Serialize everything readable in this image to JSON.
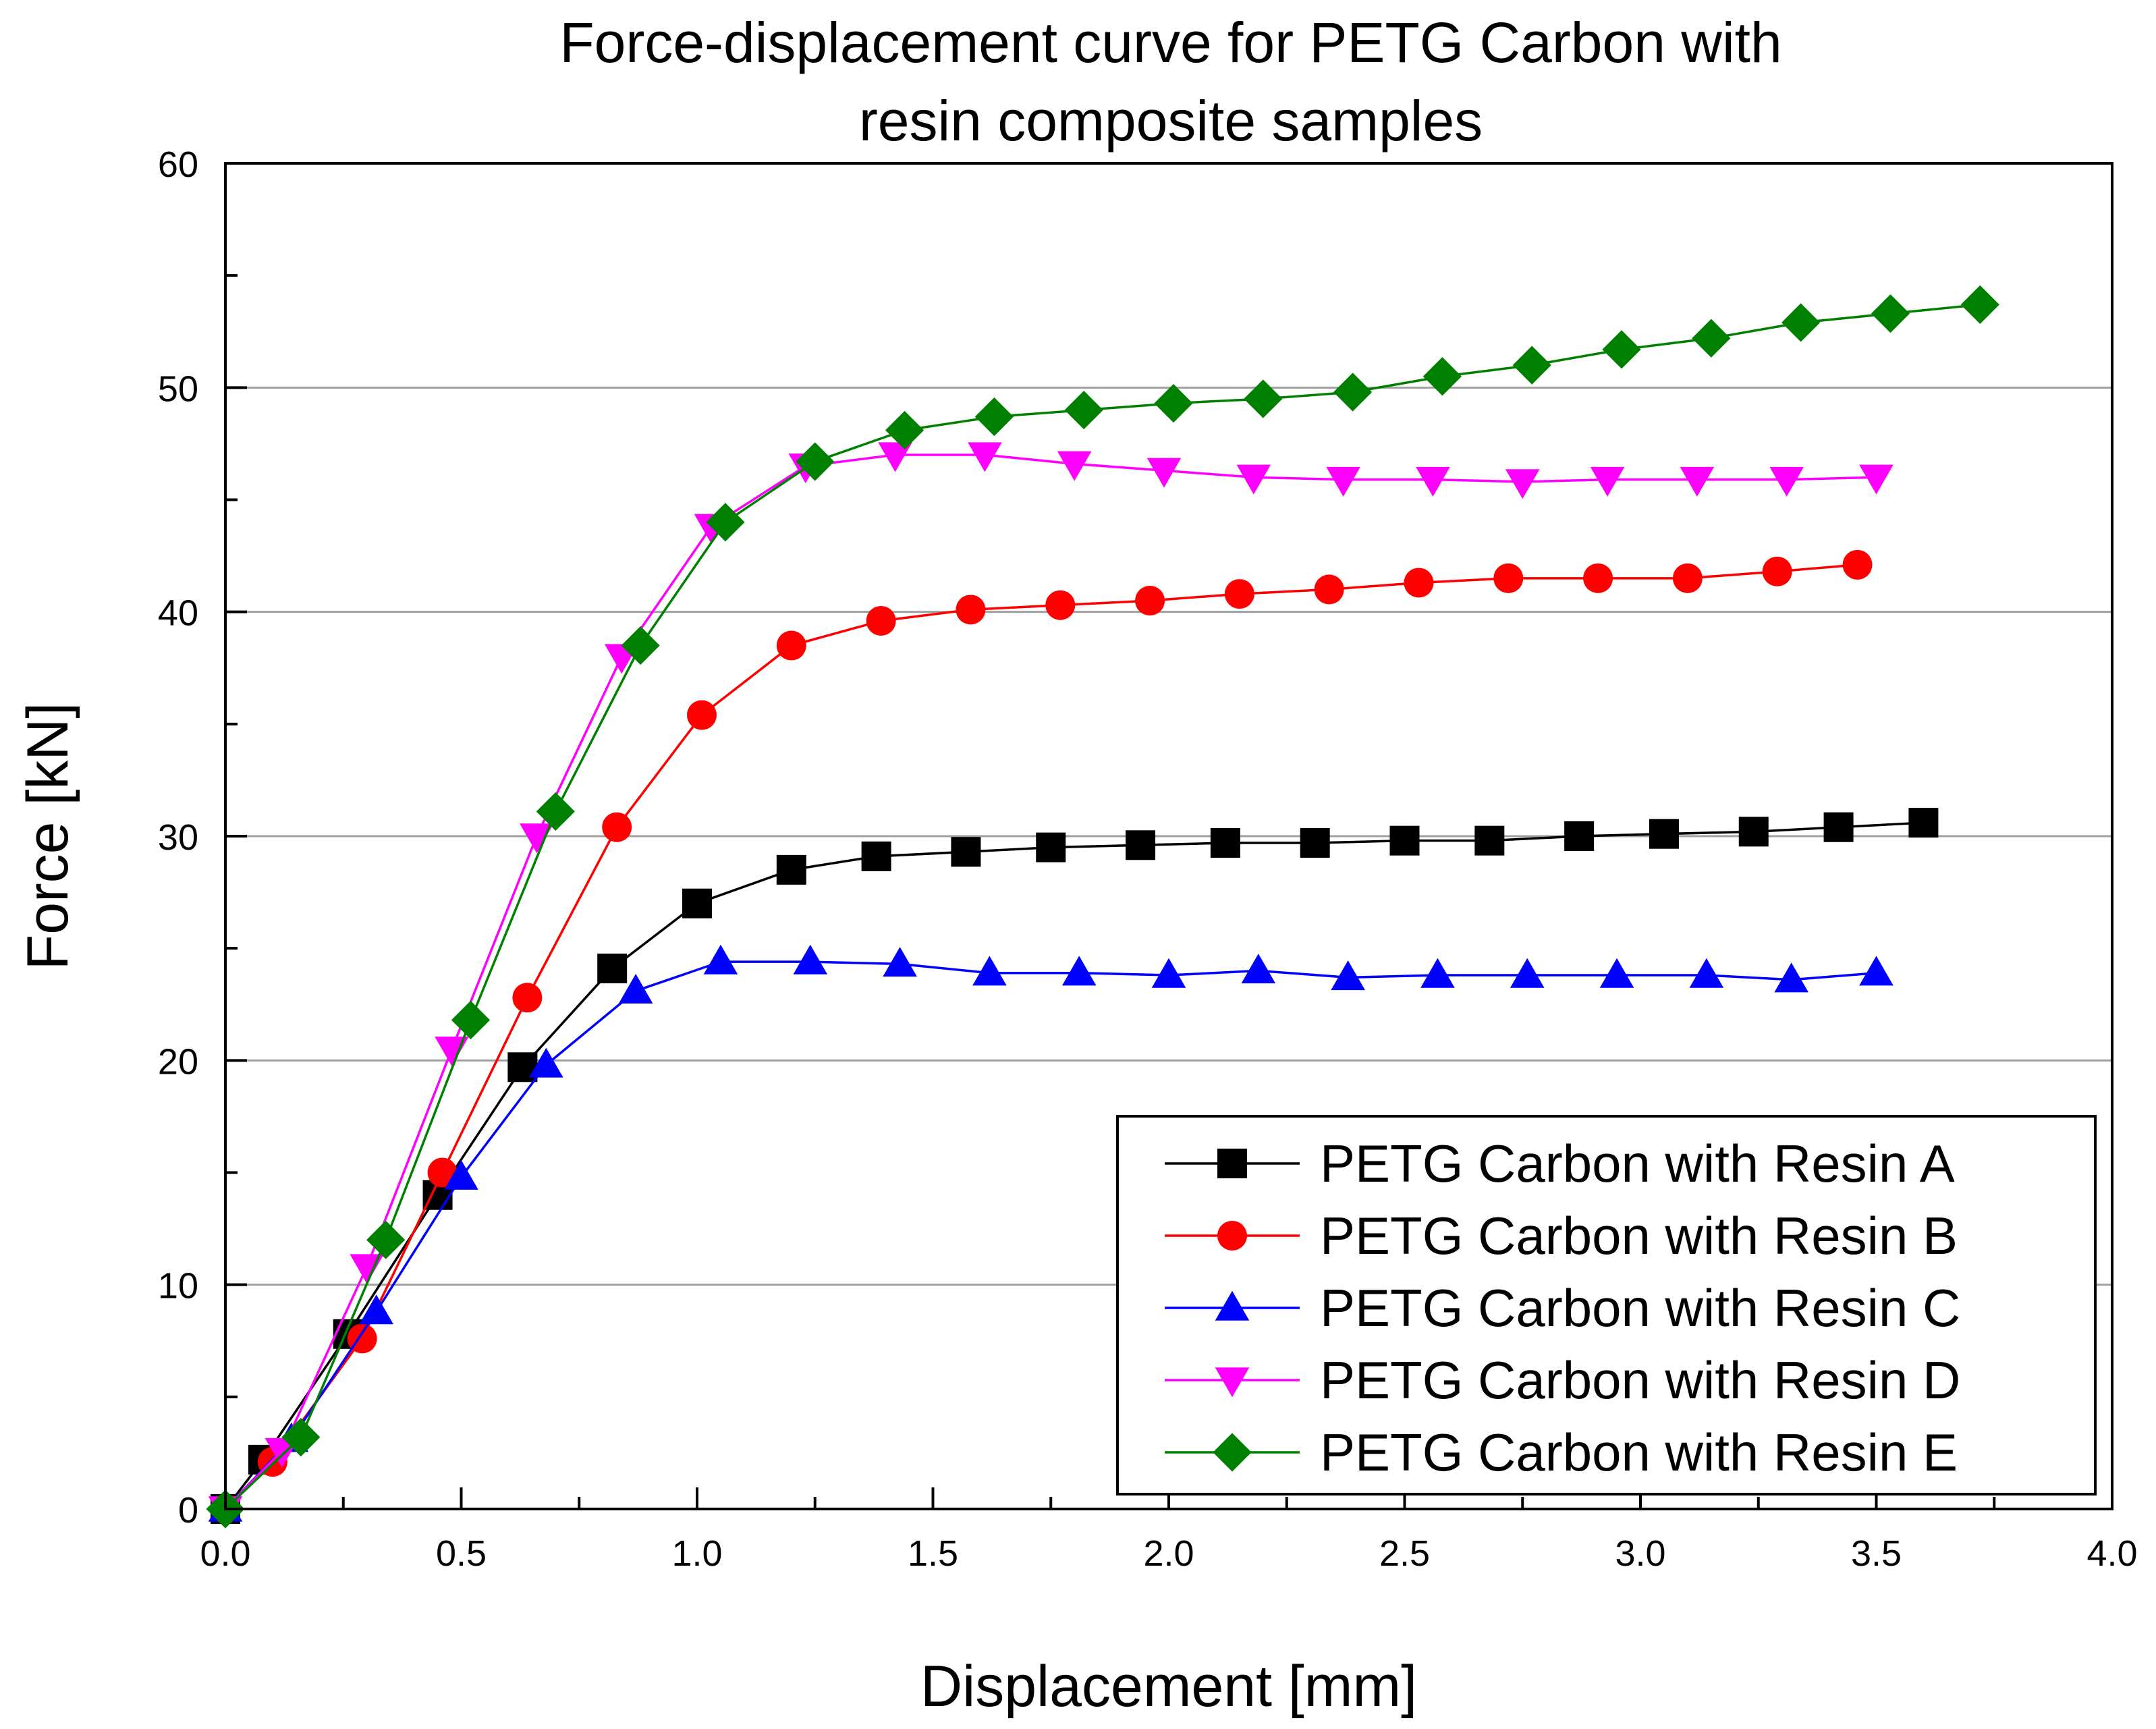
{
  "chart_data": {
    "type": "line",
    "title_lines": [
      "Force-displacement curve for PETG Carbon with",
      "resin composite samples"
    ],
    "xlabel": "Displacement [mm]",
    "ylabel": "Force [kN]",
    "xlim": [
      0.0,
      4.0
    ],
    "ylim": [
      0,
      60
    ],
    "x_ticks": [
      "0.0",
      "0.5",
      "1.0",
      "1.5",
      "2.0",
      "2.5",
      "3.0",
      "3.5",
      "4.0"
    ],
    "y_ticks": [
      "0",
      "10",
      "20",
      "30",
      "40",
      "50",
      "60"
    ],
    "grid": "horizontal",
    "legend_position": "bottom-right",
    "series": [
      {
        "name": "PETG Carbon with Resin A",
        "color": "#000000",
        "marker": "square",
        "x": [
          0.0,
          0.08,
          0.26,
          0.45,
          0.63,
          0.82,
          1.0,
          1.2,
          1.38,
          1.57,
          1.75,
          1.94,
          2.12,
          2.31,
          2.5,
          2.68,
          2.87,
          3.05,
          3.24,
          3.42,
          3.6
        ],
        "y": [
          0.0,
          2.2,
          7.8,
          14.0,
          19.7,
          24.1,
          27.0,
          28.5,
          29.1,
          29.3,
          29.5,
          29.6,
          29.7,
          29.7,
          29.8,
          29.8,
          30.0,
          30.1,
          30.2,
          30.4,
          30.6
        ]
      },
      {
        "name": "PETG Carbon with Resin B",
        "color": "#ff0000",
        "marker": "circle",
        "x": [
          0.0,
          0.1,
          0.29,
          0.46,
          0.64,
          0.83,
          1.01,
          1.2,
          1.39,
          1.58,
          1.77,
          1.96,
          2.15,
          2.34,
          2.53,
          2.72,
          2.91,
          3.1,
          3.29,
          3.46
        ],
        "y": [
          0.0,
          2.1,
          7.6,
          15.0,
          22.8,
          30.4,
          35.4,
          38.5,
          39.6,
          40.1,
          40.3,
          40.5,
          40.8,
          41.0,
          41.3,
          41.5,
          41.5,
          41.5,
          41.8,
          42.1
        ]
      },
      {
        "name": "PETG Carbon with Resin C",
        "color": "#0000ff",
        "marker": "triangle-up",
        "x": [
          0.0,
          0.14,
          0.32,
          0.5,
          0.68,
          0.87,
          1.05,
          1.24,
          1.43,
          1.62,
          1.81,
          2.0,
          2.19,
          2.38,
          2.57,
          2.76,
          2.95,
          3.14,
          3.32,
          3.5
        ],
        "y": [
          0.0,
          3.1,
          8.8,
          14.8,
          19.8,
          23.1,
          24.4,
          24.4,
          24.3,
          23.9,
          23.9,
          23.8,
          24.0,
          23.7,
          23.8,
          23.8,
          23.8,
          23.8,
          23.6,
          23.9
        ]
      },
      {
        "name": "PETG Carbon with Resin D",
        "color": "#ff00ff",
        "marker": "triangle-down",
        "x": [
          0.0,
          0.12,
          0.3,
          0.48,
          0.66,
          0.84,
          1.03,
          1.23,
          1.42,
          1.61,
          1.8,
          1.99,
          2.18,
          2.37,
          2.56,
          2.75,
          2.93,
          3.12,
          3.31,
          3.5
        ],
        "y": [
          0.0,
          2.6,
          10.8,
          20.5,
          30.0,
          38.0,
          43.8,
          46.5,
          47.0,
          47.0,
          46.6,
          46.3,
          46.0,
          45.9,
          45.9,
          45.8,
          45.9,
          45.9,
          45.9,
          46.0
        ]
      },
      {
        "name": "PETG Carbon with Resin E",
        "color": "#008000",
        "marker": "diamond",
        "x": [
          0.0,
          0.16,
          0.34,
          0.52,
          0.7,
          0.88,
          1.06,
          1.25,
          1.44,
          1.63,
          1.82,
          2.01,
          2.2,
          2.39,
          2.58,
          2.77,
          2.96,
          3.15,
          3.34,
          3.53,
          3.72
        ],
        "y": [
          0.0,
          3.2,
          12.0,
          21.8,
          31.1,
          38.5,
          44.0,
          46.7,
          48.1,
          48.7,
          49.0,
          49.3,
          49.5,
          49.8,
          50.5,
          51.0,
          51.7,
          52.2,
          52.9,
          53.3,
          53.7
        ]
      }
    ]
  }
}
